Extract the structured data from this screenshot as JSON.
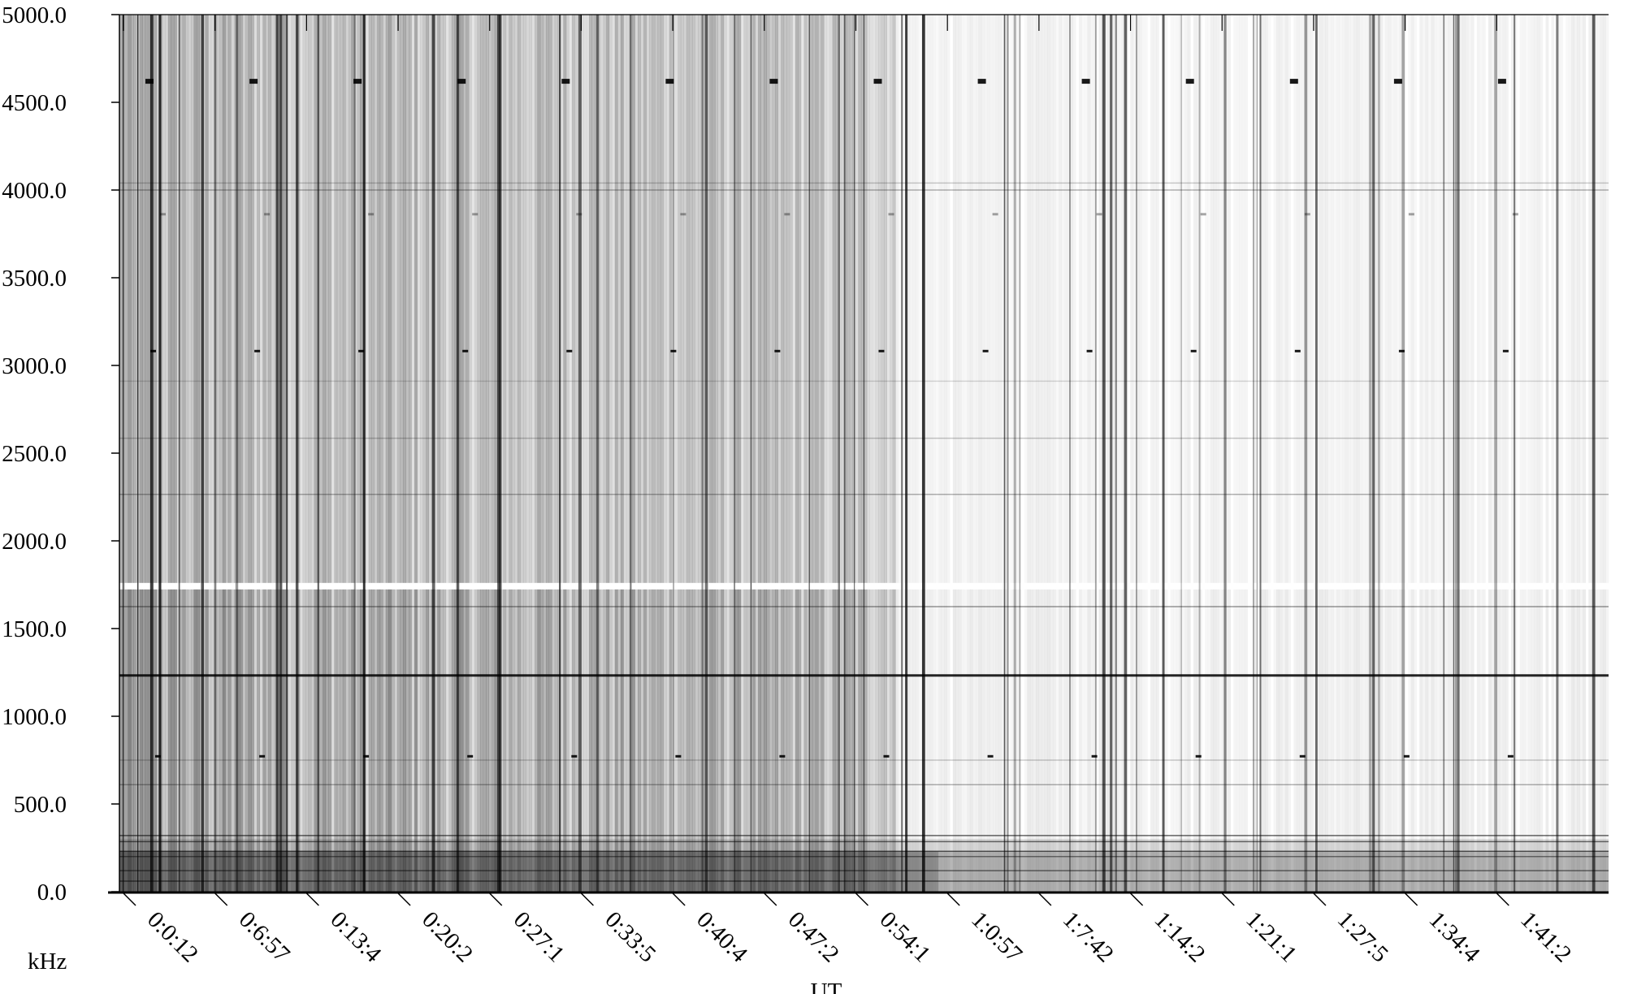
{
  "chart_data": {
    "type": "heatmap",
    "title": "",
    "xlabel": "UT",
    "ylabel": "kHz",
    "ylim": [
      0,
      5000
    ],
    "y_ticks": [
      "5000.0",
      "4500.0",
      "4000.0",
      "3500.0",
      "3000.0",
      "2500.0",
      "2000.0",
      "1500.0",
      "1000.0",
      "500.0",
      "0.0"
    ],
    "x_ticks": [
      "0:0:12",
      "0:6:57",
      "0:13:4",
      "0:20:2",
      "0:27:1",
      "0:33:5",
      "0:40:4",
      "0:47:2",
      "0:54:1",
      "1:0:57",
      "1:7:42",
      "1:14:2",
      "1:21:1",
      "1:27:5",
      "1:34:4",
      "1:41:2"
    ],
    "colormap": [
      "#ffffff",
      "#000000"
    ],
    "grid": false,
    "horizontal_lines_khz": [
      {
        "f": 1233,
        "intensity": 0.85
      },
      {
        "f": 1625,
        "intensity": 0.4
      },
      {
        "f": 2265,
        "intensity": 0.3
      },
      {
        "f": 2585,
        "intensity": 0.22
      },
      {
        "f": 2910,
        "intensity": 0.15
      },
      {
        "f": 4000,
        "intensity": 0.3
      },
      {
        "f": 4040,
        "intensity": 0.2
      },
      {
        "f": 320,
        "intensity": 0.6
      },
      {
        "f": 285,
        "intensity": 0.55
      },
      {
        "f": 230,
        "intensity": 0.6
      },
      {
        "f": 200,
        "intensity": 0.45
      },
      {
        "f": 120,
        "intensity": 0.5
      },
      {
        "f": 60,
        "intensity": 0.55
      },
      {
        "f": 610,
        "intensity": 0.3
      },
      {
        "f": 750,
        "intensity": 0.2
      }
    ],
    "markers_khz": [
      4620,
      3075,
      765,
      3855
    ]
  }
}
